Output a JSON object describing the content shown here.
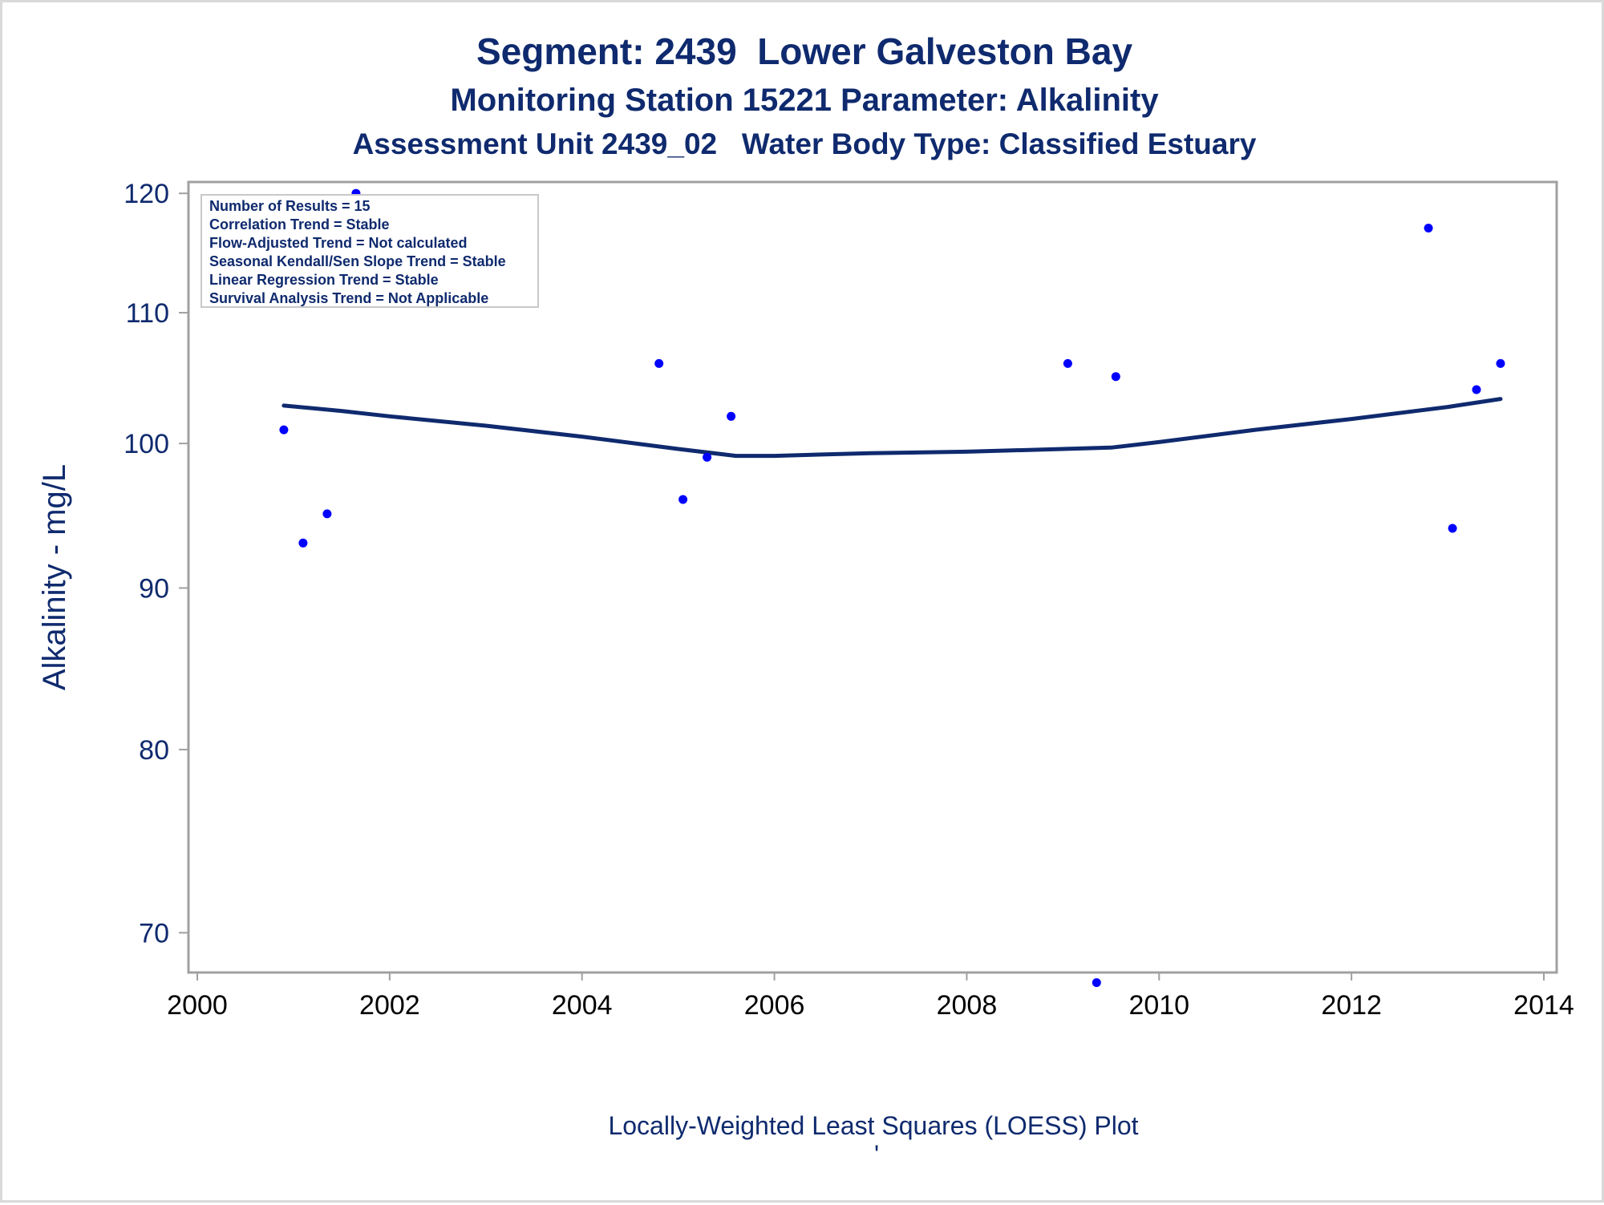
{
  "titles": {
    "line1": "Segment: 2439  Lower Galveston Bay",
    "line2": "Monitoring Station 15221 Parameter: Alkalinity",
    "line3": "Assessment Unit 2439_02   Water Body Type: Classified Estuary"
  },
  "stats_box": [
    "Number of Results = 15",
    "Correlation Trend = Stable",
    "Flow-Adjusted Trend = Not calculated",
    "Seasonal Kendall/Sen Slope Trend = Stable",
    "Linear Regression Trend = Stable",
    "Survival Analysis Trend = Not Applicable"
  ],
  "footer_mark": "'",
  "colors": {
    "title": "#0f2a6e",
    "points": "#0000ff",
    "line": "#0f2a6e",
    "frame": "#a0a0a0"
  },
  "chart_data": {
    "type": "scatter",
    "xlabel": "Locally-Weighted Least Squares (LOESS) Plot",
    "ylabel": "Alkalinity - mg/L",
    "xlim": [
      2000,
      2014
    ],
    "ylim": [
      68,
      121
    ],
    "y_scale": "log",
    "x_ticks": [
      2000,
      2002,
      2004,
      2006,
      2008,
      2010,
      2012,
      2014
    ],
    "y_ticks": [
      70,
      80,
      90,
      100,
      110,
      120
    ],
    "grid": false,
    "series": [
      {
        "type": "scatter",
        "points": [
          {
            "x": 2000.9,
            "y": 101
          },
          {
            "x": 2001.1,
            "y": 93
          },
          {
            "x": 2001.35,
            "y": 95
          },
          {
            "x": 2001.65,
            "y": 120
          },
          {
            "x": 2004.8,
            "y": 106
          },
          {
            "x": 2005.05,
            "y": 96
          },
          {
            "x": 2005.3,
            "y": 99
          },
          {
            "x": 2005.55,
            "y": 102
          },
          {
            "x": 2009.05,
            "y": 106
          },
          {
            "x": 2009.35,
            "y": 67.5
          },
          {
            "x": 2009.55,
            "y": 105
          },
          {
            "x": 2012.8,
            "y": 117
          },
          {
            "x": 2013.05,
            "y": 94
          },
          {
            "x": 2013.3,
            "y": 104
          },
          {
            "x": 2013.55,
            "y": 106
          }
        ]
      },
      {
        "type": "line",
        "points": [
          {
            "x": 2000.9,
            "y": 102.8
          },
          {
            "x": 2001.5,
            "y": 102.4
          },
          {
            "x": 2002.0,
            "y": 102.0
          },
          {
            "x": 2003.0,
            "y": 101.3
          },
          {
            "x": 2004.0,
            "y": 100.5
          },
          {
            "x": 2005.0,
            "y": 99.6
          },
          {
            "x": 2005.6,
            "y": 99.1
          },
          {
            "x": 2006.0,
            "y": 99.1
          },
          {
            "x": 2007.0,
            "y": 99.3
          },
          {
            "x": 2008.0,
            "y": 99.4
          },
          {
            "x": 2009.0,
            "y": 99.6
          },
          {
            "x": 2009.5,
            "y": 99.7
          },
          {
            "x": 2010.0,
            "y": 100.1
          },
          {
            "x": 2011.0,
            "y": 101.0
          },
          {
            "x": 2012.0,
            "y": 101.8
          },
          {
            "x": 2013.0,
            "y": 102.7
          },
          {
            "x": 2013.55,
            "y": 103.3
          }
        ]
      }
    ]
  }
}
